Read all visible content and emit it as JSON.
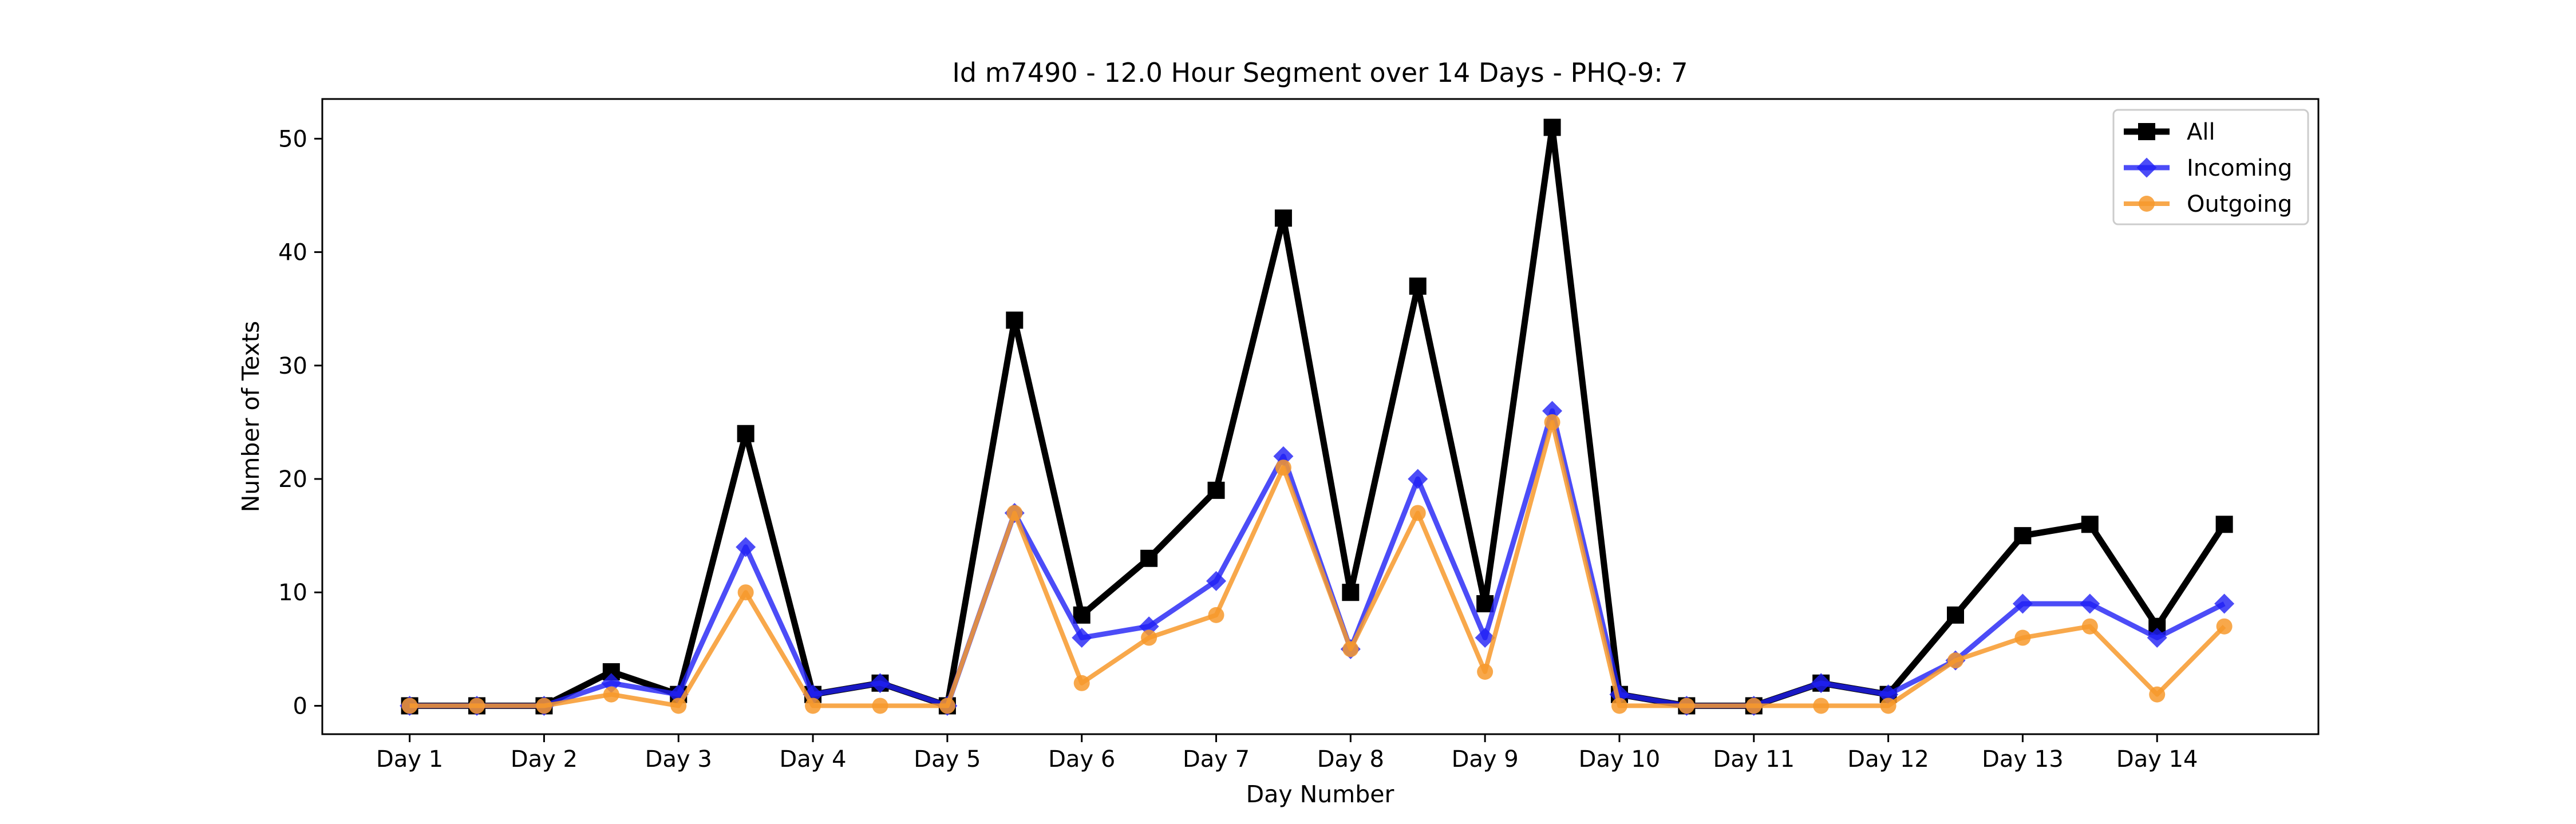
{
  "chart_data": {
    "type": "line",
    "title": "Id m7490 - 12.0 Hour Segment over 14 Days - PHQ-9: 7",
    "xlabel": "Day Number",
    "ylabel": "Number of Texts",
    "ylim": [
      -2.5,
      53.5
    ],
    "yticks": [
      0,
      10,
      20,
      30,
      40,
      50
    ],
    "grid": false,
    "legend_position": "top-right",
    "categories": [
      "Day 1",
      "Day 2",
      "Day 3",
      "Day 4",
      "Day 5",
      "Day 6",
      "Day 7",
      "Day 8",
      "Day 9",
      "Day 10",
      "Day 11",
      "Day 12",
      "Day 13",
      "Day 14"
    ],
    "x": [
      1,
      1.5,
      2,
      2.5,
      3,
      3.5,
      4,
      4.5,
      5,
      5.5,
      6,
      6.5,
      7,
      7.5,
      8,
      8.5,
      9,
      9.5,
      10,
      10.5,
      11,
      11.5,
      12,
      12.5,
      13,
      13.5,
      14,
      14.5
    ],
    "series": [
      {
        "name": "All",
        "color": "#000000",
        "marker": "square",
        "values": [
          0,
          0,
          0,
          3,
          1,
          24,
          1,
          2,
          0,
          34,
          8,
          13,
          19,
          43,
          10,
          37,
          9,
          51,
          1,
          0,
          0,
          2,
          1,
          8,
          15,
          16,
          7,
          16
        ]
      },
      {
        "name": "Incoming",
        "color": "#1f1ff5",
        "marker": "diamond",
        "values": [
          0,
          0,
          0,
          2,
          1,
          14,
          1,
          2,
          0,
          17,
          6,
          7,
          11,
          22,
          5,
          20,
          6,
          26,
          1,
          0,
          0,
          2,
          1,
          4,
          9,
          9,
          6,
          9
        ]
      },
      {
        "name": "Outgoing",
        "color": "#f7992b",
        "marker": "circle",
        "values": [
          0,
          0,
          0,
          1,
          0,
          10,
          0,
          0,
          0,
          17,
          2,
          6,
          8,
          21,
          5,
          17,
          3,
          25,
          0,
          0,
          0,
          0,
          0,
          4,
          6,
          7,
          1,
          7
        ]
      }
    ]
  }
}
